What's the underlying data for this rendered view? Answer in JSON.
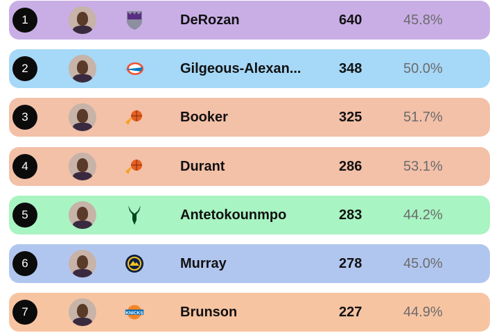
{
  "players": [
    {
      "rank": "1",
      "name": "DeRozan",
      "count": "640",
      "pct": "45.8%",
      "team_icon": "kings-logo-icon",
      "color": "#c9aee6"
    },
    {
      "rank": "2",
      "name": "Gilgeous-Alexan...",
      "count": "348",
      "pct": "50.0%",
      "team_icon": "thunder-logo-icon",
      "color": "#a6d8f7"
    },
    {
      "rank": "3",
      "name": "Booker",
      "count": "325",
      "pct": "51.7%",
      "team_icon": "suns-logo-icon",
      "color": "#f3c0a8"
    },
    {
      "rank": "4",
      "name": "Durant",
      "count": "286",
      "pct": "53.1%",
      "team_icon": "suns-logo-icon",
      "color": "#f3c0a8"
    },
    {
      "rank": "5",
      "name": "Antetokounmpo",
      "count": "283",
      "pct": "44.2%",
      "team_icon": "bucks-logo-icon",
      "color": "#a8f4c2"
    },
    {
      "rank": "6",
      "name": "Murray",
      "count": "278",
      "pct": "45.0%",
      "team_icon": "nuggets-logo-icon",
      "color": "#b1c6ef"
    },
    {
      "rank": "7",
      "name": "Brunson",
      "count": "227",
      "pct": "44.9%",
      "team_icon": "knicks-logo-icon",
      "color": "#f7c4a2"
    }
  ]
}
